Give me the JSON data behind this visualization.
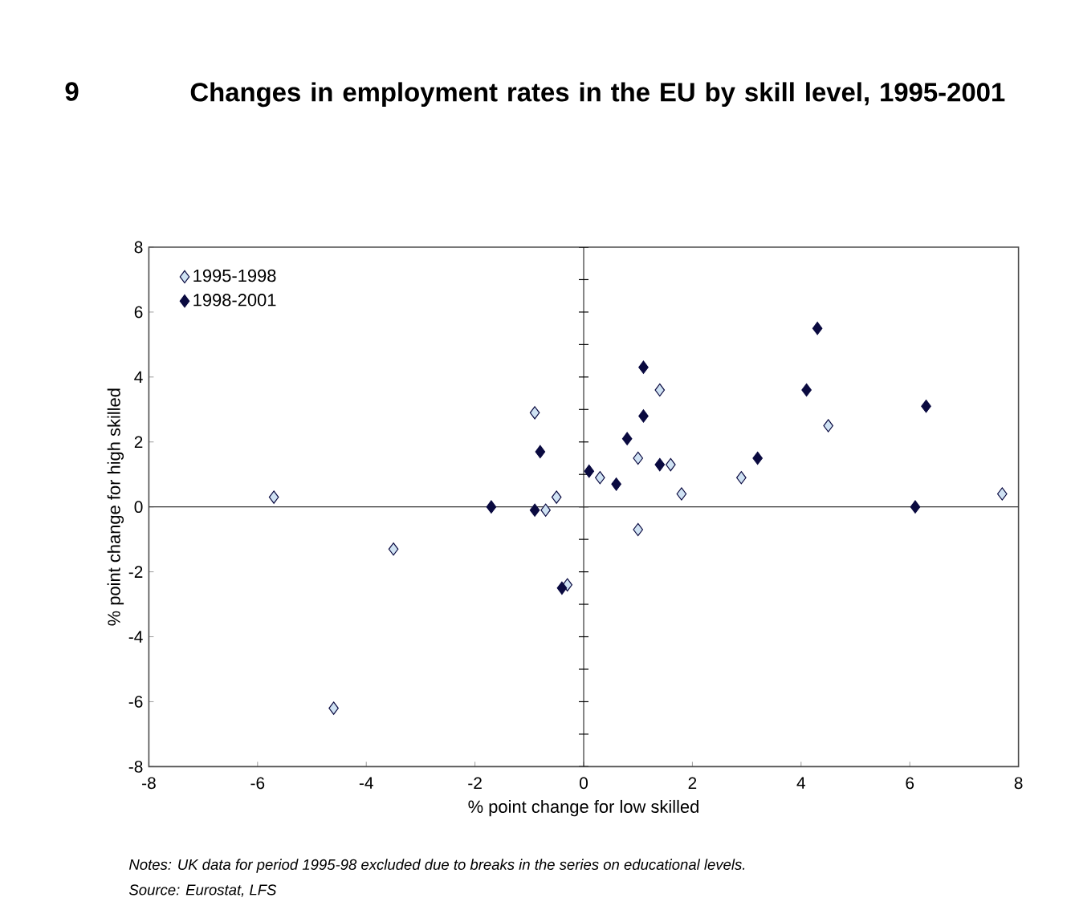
{
  "chart_data": {
    "type": "scatter",
    "title": "Changes in employment rates in the EU by skill level, 1995-2001",
    "xlabel": "% point change for low skilled",
    "ylabel": "% point change for high skilled",
    "annotations": [
      "9",
      "Notes: UK data for period 1995-98 excluded due to breaks in the series on educational levels.",
      "Source: Eurostat, LFS"
    ],
    "series": [
      {
        "name": "1995-1998",
        "color": "#cfe2f3",
        "x": [
          -5.7,
          -3.5,
          -4.6,
          -0.9,
          -0.5,
          -0.7,
          -0.3,
          0.3,
          1.0,
          1.0,
          1.4,
          1.6,
          1.8,
          2.9,
          4.5,
          7.7
        ],
        "values": [
          0.3,
          -1.3,
          -6.2,
          2.9,
          0.3,
          -0.1,
          -2.4,
          0.9,
          1.5,
          -0.7,
          3.6,
          1.3,
          0.4,
          0.9,
          2.5,
          0.4
        ]
      },
      {
        "name": "1998-2001",
        "color": "#0a0a40",
        "x": [
          -0.8,
          -1.7,
          -0.9,
          -0.4,
          0.1,
          0.6,
          0.8,
          1.1,
          1.1,
          1.4,
          3.2,
          4.1,
          4.3,
          6.1,
          6.3
        ],
        "values": [
          1.7,
          0.0,
          -0.1,
          -2.5,
          1.1,
          0.7,
          2.1,
          2.8,
          4.3,
          1.3,
          1.5,
          3.6,
          5.5,
          0.0,
          3.1
        ]
      }
    ],
    "xlim": [
      -8,
      8
    ],
    "ylim": [
      -8,
      8
    ],
    "xticks": [
      -8,
      -6,
      -4,
      -2,
      0,
      2,
      4,
      6,
      8
    ],
    "yticks": [
      -8,
      -6,
      -4,
      -2,
      0,
      2,
      4,
      6,
      8
    ],
    "ref_lines": [
      {
        "axis": "x",
        "value": 0
      },
      {
        "axis": "y",
        "value": 0
      }
    ],
    "marker": "diamond",
    "legend": "top left",
    "grid": false
  }
}
